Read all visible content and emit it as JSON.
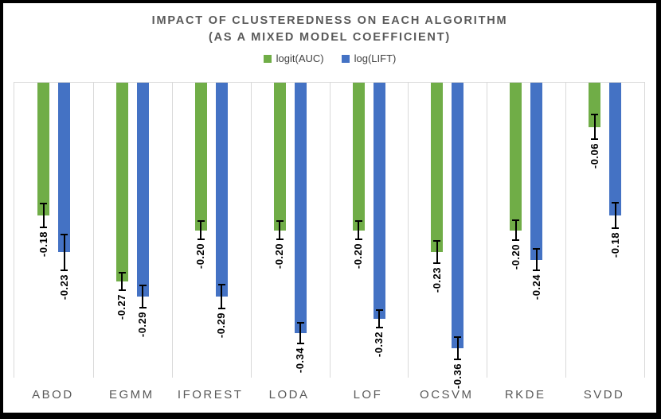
{
  "title": {
    "line1": "IMPACT OF CLUSTEREDNESS ON EACH ALGORITHM",
    "line2": "(AS A MIXED MODEL COEFFICIENT)"
  },
  "colors": {
    "series_green": "#70AD47",
    "series_blue": "#4472C4",
    "title_text": "#595959",
    "axis_text": "#595959",
    "legend_text": "#404040",
    "gridline": "#D9D9D9",
    "error_bar": "#000000",
    "data_label": "#000000",
    "frame": "#000000"
  },
  "chart_data": {
    "type": "bar",
    "title": "IMPACT OF CLUSTEREDNESS ON EACH ALGORITHM (AS A MIXED MODEL COEFFICIENT)",
    "orientation": "vertical-negative",
    "categories": [
      "ABOD",
      "EGMM",
      "IFOREST",
      "LODA",
      "LOF",
      "OCSVM",
      "RKDE",
      "SVDD"
    ],
    "series": [
      {
        "name": "logit(AUC)",
        "key": "logit-auc",
        "color": "#70AD47",
        "values": [
          -0.18,
          -0.27,
          -0.2,
          -0.2,
          -0.2,
          -0.23,
          -0.2,
          -0.06
        ],
        "labels": [
          "-0.18",
          "-0.27",
          "-0.20",
          "-0.20",
          "-0.20",
          "-0.23",
          "-0.20",
          "-0.06"
        ],
        "errors": [
          0.017,
          0.013,
          0.013,
          0.013,
          0.013,
          0.016,
          0.015,
          0.018
        ]
      },
      {
        "name": "log(LIFT)",
        "key": "log-lift",
        "color": "#4472C4",
        "values": [
          -0.23,
          -0.29,
          -0.29,
          -0.34,
          -0.32,
          -0.36,
          -0.24,
          -0.18
        ],
        "labels": [
          "-0.23",
          "-0.29",
          "-0.29",
          "-0.34",
          "-0.32",
          "-0.36",
          "-0.24",
          "-0.18"
        ],
        "errors": [
          0.025,
          0.016,
          0.017,
          0.015,
          0.013,
          0.016,
          0.016,
          0.018
        ]
      }
    ],
    "ylim": [
      -0.4,
      0
    ],
    "value_axis_visible": false,
    "grid": "vertical-category-separators",
    "legend_position": "top",
    "error_bars": true,
    "data_label_rotation": "rotate-270-read-bottom-to-top"
  }
}
